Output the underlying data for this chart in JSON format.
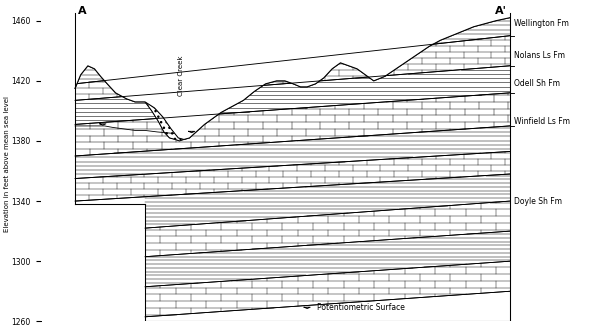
{
  "ylabel": "Elevation in feet above mean sea level",
  "ylim": [
    1260,
    1470
  ],
  "xlim": [
    0,
    10
  ],
  "y_ticks": [
    1260,
    1300,
    1340,
    1380,
    1420,
    1460
  ],
  "background_color": "#ffffff",
  "figure_width": 6.0,
  "figure_height": 3.31,
  "dpi": 100,
  "formations": [
    {
      "name": "Wellington Fm",
      "y": 1458
    },
    {
      "name": "Nolans Ls Fm",
      "y": 1437
    },
    {
      "name": "Odell Sh Fm",
      "y": 1418
    },
    {
      "name": "Winfield Ls Fm",
      "y": 1393
    },
    {
      "name": "Doyle Sh Fm",
      "y": 1340
    }
  ],
  "label_A": "A",
  "label_Aprime": "A'",
  "creek_label": "Clear Creek",
  "potentiometric_label": "Potentiometric Surface",
  "line_color": "#000000"
}
